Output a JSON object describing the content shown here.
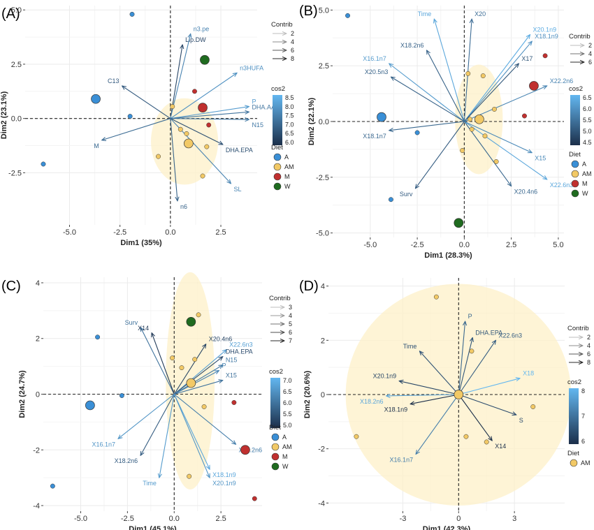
{
  "figure": {
    "title": ""
  },
  "chart_data": [
    {
      "panel": "(A)",
      "type": "scatter",
      "subtype": "pca-biplot",
      "xlabel": "Dim1 (35%)",
      "ylabel": "Dim2 (23.1%)",
      "xlim": [
        -7.2,
        4.3
      ],
      "ylim": [
        -4.9,
        5.2
      ],
      "xticks": [
        -5.0,
        -2.5,
        0.0,
        2.5
      ],
      "yticks": [
        -2.5,
        0.0,
        2.5,
        5.0
      ],
      "grid": true,
      "legend_position": "right",
      "legends": {
        "contrib": {
          "title": "Contrib",
          "levels": [
            "2",
            "4",
            "6",
            "8"
          ]
        },
        "cos2": {
          "title": "cos2",
          "ticks": [
            "8.5",
            "8.0",
            "7.5",
            "7.0",
            "6.5",
            "6.0"
          ]
        },
        "diet": {
          "title": "Diet",
          "items": [
            "A",
            "AM",
            "M",
            "W"
          ]
        }
      },
      "variables": [
        {
          "label": "Lip.DW",
          "x": 0.6,
          "y": 3.4,
          "cos2": 6.3
        },
        {
          "label": "n3.pe",
          "x": 1.0,
          "y": 3.9,
          "cos2": 7.6
        },
        {
          "label": "n3HUFA",
          "x": 3.3,
          "y": 2.1,
          "cos2": 7.9
        },
        {
          "label": "P",
          "x": 3.9,
          "y": 0.55,
          "cos2": 8.1
        },
        {
          "label": "DHA.AA",
          "x": 3.9,
          "y": 0.3,
          "cos2": 7.3
        },
        {
          "label": "N15",
          "x": 3.9,
          "y": -0.05,
          "cos2": 7.4
        },
        {
          "label": "DHA.EPA",
          "x": 2.6,
          "y": -1.2,
          "cos2": 6.5
        },
        {
          "label": "SL",
          "x": 3.0,
          "y": -3.0,
          "cos2": 7.6
        },
        {
          "label": "n6",
          "x": 0.35,
          "y": -3.8,
          "cos2": 6.9
        },
        {
          "label": "C13",
          "x": -2.4,
          "y": 1.5,
          "cos2": 6.7
        },
        {
          "label": "M",
          "x": -3.4,
          "y": -1.0,
          "cos2": 7.1
        }
      ],
      "individuals": [
        {
          "diet": "A",
          "x": -1.9,
          "y": 4.8
        },
        {
          "diet": "A",
          "x": -2.0,
          "y": 0.1
        },
        {
          "diet": "A",
          "x": -6.3,
          "y": -2.1
        },
        {
          "diet": "AM",
          "x": 0.1,
          "y": 0.55
        },
        {
          "diet": "AM",
          "x": 0.5,
          "y": -0.5
        },
        {
          "diet": "AM",
          "x": 0.8,
          "y": -0.7
        },
        {
          "diet": "AM",
          "x": 1.8,
          "y": -1.3
        },
        {
          "diet": "AM",
          "x": -0.6,
          "y": -1.75
        },
        {
          "diet": "AM",
          "x": 1.6,
          "y": -2.65
        },
        {
          "diet": "M",
          "x": 1.6,
          "y": 0.5
        },
        {
          "diet": "M",
          "x": 1.2,
          "y": 1.25
        },
        {
          "diet": "M",
          "x": 1.9,
          "y": -0.3
        },
        {
          "diet": "W",
          "x": 1.7,
          "y": 2.7
        }
      ],
      "centroids": [
        {
          "diet": "A",
          "x": -3.7,
          "y": 0.9
        },
        {
          "diet": "AM",
          "x": 0.9,
          "y": -1.15
        },
        {
          "diet": "M",
          "x": 1.6,
          "y": 0.5
        },
        {
          "diet": "W",
          "x": 1.7,
          "y": 2.7
        }
      ]
    },
    {
      "panel": "(B)",
      "type": "scatter",
      "subtype": "pca-biplot",
      "xlabel": "Dim1 (28.3%)",
      "ylabel": "Dim2 (22.1%)",
      "xlim": [
        -7.0,
        5.3
      ],
      "ylim": [
        -5.2,
        5.2
      ],
      "xticks": [
        -5.0,
        -2.5,
        0.0,
        2.5,
        5.0
      ],
      "yticks": [
        -5.0,
        -2.5,
        0.0,
        2.5,
        5.0
      ],
      "grid": true,
      "legend_position": "right",
      "legends": {
        "contrib": {
          "title": "Contrib",
          "levels": [
            "2",
            "4",
            "6"
          ]
        },
        "cos2": {
          "title": "cos2",
          "ticks": [
            "6.5",
            "6.0",
            "5.5",
            "5.0",
            "4.5"
          ]
        },
        "diet": {
          "title": "Diet",
          "items": [
            "A",
            "AM",
            "M",
            "W"
          ]
        }
      },
      "variables": [
        {
          "label": "Time",
          "x": -1.6,
          "y": 4.6,
          "cos2": 6.4
        },
        {
          "label": "X20",
          "x": 0.4,
          "y": 4.6,
          "cos2": 5.4
        },
        {
          "label": "X20.1n9",
          "x": 3.5,
          "y": 3.9,
          "cos2": 6.5
        },
        {
          "label": "X18.1n9",
          "x": 3.6,
          "y": 3.6,
          "cos2": 6.0
        },
        {
          "label": "X18.2n6",
          "x": -2.0,
          "y": 3.2,
          "cos2": 5.2
        },
        {
          "label": "X16.1n7",
          "x": -4.0,
          "y": 2.6,
          "cos2": 6.2
        },
        {
          "label": "X17",
          "x": 2.9,
          "y": 2.6,
          "cos2": 5.0
        },
        {
          "label": "X20.5n3",
          "x": -3.9,
          "y": 2.0,
          "cos2": 5.2
        },
        {
          "label": "X22.2n6",
          "x": 4.4,
          "y": 1.6,
          "cos2": 5.8
        },
        {
          "label": "X18.1n7",
          "x": -4.0,
          "y": -0.4,
          "cos2": 5.3
        },
        {
          "label": "X15",
          "x": 3.6,
          "y": -1.4,
          "cos2": 5.9
        },
        {
          "label": "X22.6n3",
          "x": 4.4,
          "y": -2.6,
          "cos2": 6.4
        },
        {
          "label": "X20.4n6",
          "x": 2.5,
          "y": -2.9,
          "cos2": 5.3
        },
        {
          "label": "Surv",
          "x": -2.6,
          "y": -3.0,
          "cos2": 5.1
        }
      ],
      "individuals": [
        {
          "diet": "A",
          "x": -6.2,
          "y": 4.75
        },
        {
          "diet": "A",
          "x": -2.5,
          "y": -0.5
        },
        {
          "diet": "A",
          "x": -3.9,
          "y": -3.5
        },
        {
          "diet": "AM",
          "x": 0.2,
          "y": 2.15
        },
        {
          "diet": "AM",
          "x": 1.0,
          "y": 2.05
        },
        {
          "diet": "AM",
          "x": 1.6,
          "y": 0.55
        },
        {
          "diet": "AM",
          "x": 0.3,
          "y": 0.1
        },
        {
          "diet": "AM",
          "x": 0.4,
          "y": -0.35
        },
        {
          "diet": "AM",
          "x": 1.1,
          "y": -0.65
        },
        {
          "diet": "AM",
          "x": -0.1,
          "y": -1.3
        },
        {
          "diet": "AM",
          "x": 1.7,
          "y": -1.8
        },
        {
          "diet": "AM",
          "x": 0.8,
          "y": 0.1
        },
        {
          "diet": "M",
          "x": 4.3,
          "y": 2.95
        },
        {
          "diet": "M",
          "x": 3.2,
          "y": 0.25
        },
        {
          "diet": "W",
          "x": -0.3,
          "y": -4.55
        }
      ],
      "centroids": [
        {
          "diet": "A",
          "x": -4.4,
          "y": 0.2
        },
        {
          "diet": "AM",
          "x": 0.8,
          "y": 0.1
        },
        {
          "diet": "M",
          "x": 3.7,
          "y": 1.6
        },
        {
          "diet": "W",
          "x": -0.3,
          "y": -4.55
        }
      ]
    },
    {
      "panel": "(C)",
      "type": "scatter",
      "subtype": "pca-biplot",
      "xlabel": "Dim1 (45.1%)",
      "ylabel": "Dim2 (24.7%)",
      "xlim": [
        -7.0,
        4.7
      ],
      "ylim": [
        -4.2,
        4.2
      ],
      "xticks": [
        -5.0,
        -2.5,
        0.0,
        2.5
      ],
      "yticks": [
        -4,
        -2,
        0,
        2,
        4
      ],
      "grid": true,
      "legend_position": "right",
      "legends": {
        "contrib": {
          "title": "Contrib",
          "levels": [
            "3",
            "4",
            "5",
            "6",
            "7"
          ]
        },
        "cos2": {
          "title": "cos2",
          "ticks": [
            "7.0",
            "6.5",
            "6.0",
            "5.5",
            "5.0"
          ]
        },
        "diet": {
          "title": "Diet",
          "items": [
            "A",
            "AM",
            "M",
            "W"
          ]
        }
      },
      "variables": [
        {
          "label": "Surv",
          "x": -1.8,
          "y": 2.4,
          "cos2": 6.0
        },
        {
          "label": "X14",
          "x": -1.2,
          "y": 2.2,
          "cos2": 5.0
        },
        {
          "label": "X20.4n6",
          "x": 1.7,
          "y": 1.8,
          "cos2": 5.2
        },
        {
          "label": "X22.6n3",
          "x": 2.8,
          "y": 1.6,
          "cos2": 6.8
        },
        {
          "label": "DHA.EPA",
          "x": 2.6,
          "y": 1.35,
          "cos2": 5.3
        },
        {
          "label": "N15",
          "x": 2.6,
          "y": 1.05,
          "cos2": 6.1
        },
        {
          "label": "P",
          "x": 2.4,
          "y": 0.85,
          "cos2": 6.3
        },
        {
          "label": "X15",
          "x": 2.6,
          "y": 0.5,
          "cos2": 6.0
        },
        {
          "label": "X20.2n6",
          "x": 3.3,
          "y": -1.8,
          "cos2": 6.2
        },
        {
          "label": "X18.1n9",
          "x": 1.9,
          "y": -2.7,
          "cos2": 6.9
        },
        {
          "label": "X20.1n9",
          "x": 1.9,
          "y": -3.0,
          "cos2": 6.6
        },
        {
          "label": "X16.1n7",
          "x": -3.0,
          "y": -1.6,
          "cos2": 6.6
        },
        {
          "label": "X18.2n6",
          "x": -1.8,
          "y": -2.2,
          "cos2": 5.6
        },
        {
          "label": "Time",
          "x": -0.8,
          "y": -3.0,
          "cos2": 6.7
        }
      ],
      "individuals": [
        {
          "diet": "A",
          "x": -4.1,
          "y": 2.05
        },
        {
          "diet": "A",
          "x": -2.8,
          "y": -0.05
        },
        {
          "diet": "A",
          "x": -6.5,
          "y": -3.3
        },
        {
          "diet": "AM",
          "x": 1.3,
          "y": 2.85
        },
        {
          "diet": "AM",
          "x": 1.1,
          "y": 1.25
        },
        {
          "diet": "AM",
          "x": -0.1,
          "y": 1.3
        },
        {
          "diet": "AM",
          "x": 0.4,
          "y": 0.95
        },
        {
          "diet": "AM",
          "x": 0.9,
          "y": 0.4
        },
        {
          "diet": "AM",
          "x": 1.6,
          "y": -0.45
        },
        {
          "diet": "AM",
          "x": 0.8,
          "y": -2.95
        },
        {
          "diet": "M",
          "x": 3.2,
          "y": -0.3
        },
        {
          "diet": "M",
          "x": 4.3,
          "y": -3.75
        },
        {
          "diet": "W",
          "x": 0.9,
          "y": 2.6
        }
      ],
      "centroids": [
        {
          "diet": "A",
          "x": -4.5,
          "y": -0.4
        },
        {
          "diet": "AM",
          "x": 0.9,
          "y": 0.4
        },
        {
          "diet": "M",
          "x": 3.8,
          "y": -2.0
        },
        {
          "diet": "W",
          "x": 0.9,
          "y": 2.6
        }
      ]
    },
    {
      "panel": "(D)",
      "type": "scatter",
      "subtype": "pca-biplot",
      "xlabel": "Dim1 (42.3%)",
      "ylabel": "Dim2 (20.6%)",
      "xlim": [
        -7.0,
        5.7
      ],
      "ylim": [
        -4.3,
        4.3
      ],
      "xticks": [
        -3,
        0,
        3
      ],
      "yticks": [
        -4,
        -2,
        0,
        2,
        4
      ],
      "grid": true,
      "legend_position": "right",
      "legends": {
        "contrib": {
          "title": "Contrib",
          "levels": [
            "2",
            "4",
            "6",
            "8"
          ]
        },
        "cos2": {
          "title": "cos2",
          "ticks": [
            "8",
            "7",
            "6"
          ]
        },
        "diet": {
          "title": "Diet",
          "items": [
            "AM"
          ]
        }
      },
      "variables": [
        {
          "label": "P",
          "x": 0.35,
          "y": 2.7,
          "cos2": 6.8
        },
        {
          "label": "DHA.EPA",
          "x": 0.75,
          "y": 2.1,
          "cos2": 6.5
        },
        {
          "label": "X22.6n3",
          "x": 2.0,
          "y": 2.0,
          "cos2": 6.6
        },
        {
          "label": "Time",
          "x": -2.1,
          "y": 1.6,
          "cos2": 6.4
        },
        {
          "label": "X18",
          "x": 3.3,
          "y": 0.6,
          "cos2": 8.3
        },
        {
          "label": "X20.1n9",
          "x": -3.2,
          "y": 0.5,
          "cos2": 6.2
        },
        {
          "label": "X18.2n6",
          "x": -3.9,
          "y": -0.05,
          "cos2": 7.9
        },
        {
          "label": "X18.1n9",
          "x": -2.6,
          "y": -0.35,
          "cos2": 5.3
        },
        {
          "label": "S",
          "x": 3.1,
          "y": -0.75,
          "cos2": 6.3
        },
        {
          "label": "X14",
          "x": 1.8,
          "y": -1.7,
          "cos2": 5.8
        },
        {
          "label": "X16.1n7",
          "x": -2.3,
          "y": -2.2,
          "cos2": 7.2
        }
      ],
      "individuals": [
        {
          "diet": "AM",
          "x": -1.2,
          "y": 3.6
        },
        {
          "diet": "AM",
          "x": 0.7,
          "y": 1.6
        },
        {
          "diet": "AM",
          "x": 4.0,
          "y": -0.45
        },
        {
          "diet": "AM",
          "x": 0.4,
          "y": -1.55
        },
        {
          "diet": "AM",
          "x": 1.5,
          "y": -1.75
        },
        {
          "diet": "AM",
          "x": -5.5,
          "y": -1.55
        },
        {
          "diet": "AM",
          "x": -0.1,
          "y": 0.0
        },
        {
          "diet": "AM",
          "x": 0.1,
          "y": 0.05
        }
      ],
      "centroids": [
        {
          "diet": "AM",
          "x": 0.0,
          "y": 0.0
        }
      ]
    }
  ],
  "colors": {
    "A": "#3a8fd6",
    "AM": "#f2c966",
    "M": "#c0302f",
    "W": "#1f6b1f",
    "ellipse": "#fdf0c8",
    "cos2_low": "#1c2f4a",
    "cos2_high": "#63b7f0"
  }
}
